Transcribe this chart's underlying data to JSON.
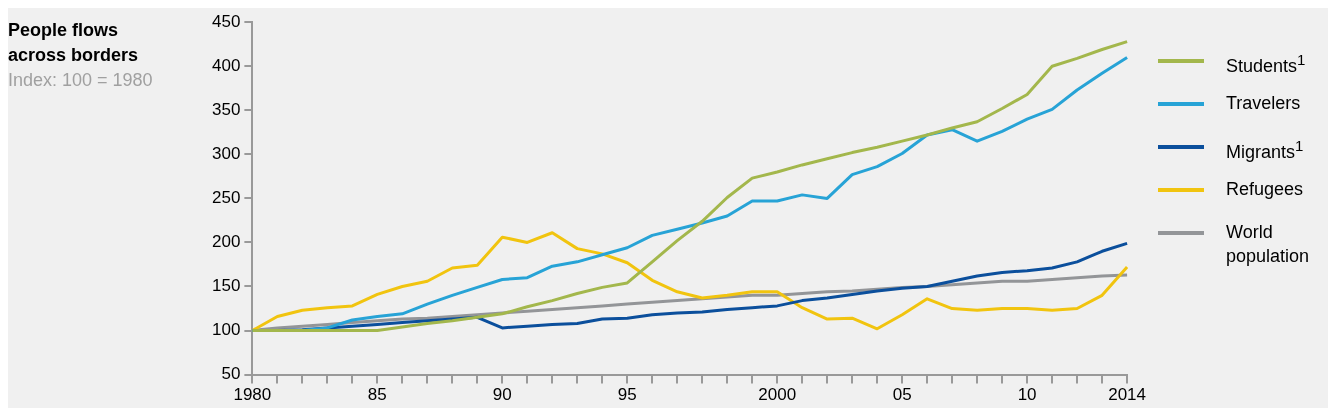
{
  "chart_data": {
    "type": "line",
    "title": "People flows across borders",
    "subtitle": "Index: 100 = 1980",
    "categories": [
      "1980",
      null,
      null,
      null,
      null,
      "85",
      null,
      null,
      null,
      null,
      "90",
      null,
      null,
      null,
      null,
      "95",
      null,
      null,
      null,
      null,
      null,
      "2000",
      null,
      null,
      null,
      null,
      "05",
      null,
      null,
      null,
      null,
      "10",
      null,
      null,
      null,
      "2014"
    ],
    "ylim": [
      50,
      450
    ],
    "yticks": [
      50,
      100,
      150,
      200,
      250,
      300,
      350,
      400,
      450
    ],
    "grid": false,
    "legend": "right",
    "marker": "none",
    "line_style": "solid",
    "series": [
      {
        "name": "Students$^{1}$",
        "color": "#a3b74c",
        "values": [
          100,
          100,
          100,
          100,
          100,
          100,
          104,
          108,
          111,
          115,
          119,
          127,
          134,
          142,
          149,
          154,
          178,
          202,
          224,
          251,
          273,
          280,
          288,
          295,
          302,
          308,
          315,
          322,
          330,
          337,
          352,
          368,
          400,
          409,
          419,
          428
        ]
      },
      {
        "name": "Travelers",
        "color": "#27a3d6",
        "values": [
          100,
          100,
          100,
          103,
          112,
          116,
          119,
          130,
          140,
          149,
          158,
          160,
          173,
          178,
          186,
          194,
          208,
          215,
          222,
          230,
          247,
          247,
          254,
          250,
          277,
          286,
          301,
          322,
          328,
          315,
          326,
          340,
          351,
          373,
          392,
          410
        ]
      },
      {
        "name": "Migrants$^{1}$",
        "color": "#0b4f9c",
        "values": [
          100,
          100,
          101,
          103,
          105,
          107,
          109,
          111,
          113,
          115,
          103,
          105,
          107,
          108,
          113,
          114,
          118,
          120,
          121,
          124,
          126,
          128,
          134,
          137,
          141,
          145,
          148,
          150,
          156,
          162,
          166,
          168,
          171,
          178,
          190,
          199
        ]
      },
      {
        "name": "Refugees",
        "color": "#f1c40f",
        "values": [
          100,
          116,
          123,
          126,
          128,
          141,
          150,
          156,
          171,
          174,
          206,
          200,
          211,
          193,
          187,
          177,
          157,
          144,
          137,
          140,
          144,
          144,
          126,
          113,
          114,
          102,
          118,
          136,
          125,
          123,
          125,
          125,
          123,
          125,
          140,
          172
        ]
      },
      {
        "name": "World population",
        "color": "#939598",
        "values": [
          100,
          103,
          105,
          107,
          109,
          111,
          113,
          114,
          116,
          118,
          120,
          122,
          124,
          126,
          128,
          130,
          132,
          134,
          136,
          138,
          140,
          140,
          142,
          144,
          145,
          147,
          149,
          150,
          152,
          154,
          156,
          156,
          158,
          160,
          162,
          163
        ]
      }
    ]
  }
}
